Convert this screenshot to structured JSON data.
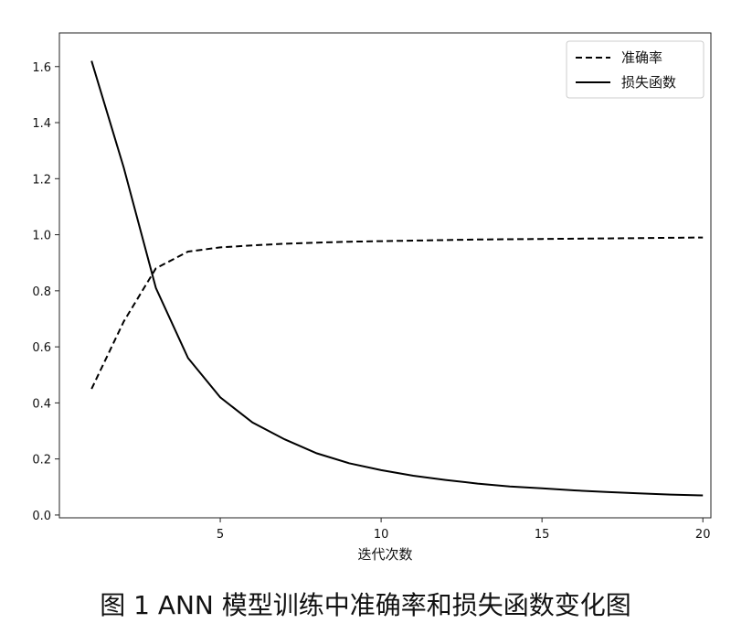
{
  "caption": "图 1 ANN 模型训练中准确率和损失函数变化图",
  "chart_data": {
    "type": "line",
    "title": "",
    "xlabel": "迭代次数",
    "ylabel": "",
    "xlim": [
      0.0,
      20.25
    ],
    "ylim": [
      -0.01,
      1.72
    ],
    "xticks": [
      5,
      10,
      15,
      20
    ],
    "yticks": [
      0.0,
      0.2,
      0.4,
      0.6,
      0.8,
      1.0,
      1.2,
      1.4,
      1.6
    ],
    "ytick_labels": [
      "0.0",
      "0.2",
      "0.4",
      "0.6",
      "0.8",
      "1.0",
      "1.2",
      "1.4",
      "1.6"
    ],
    "legend_position": "top-right",
    "grid": false,
    "series": [
      {
        "name": "准确率",
        "style": "dashed",
        "color": "#000000",
        "x": [
          1,
          2,
          3,
          4,
          5,
          6,
          7,
          8,
          9,
          10,
          11,
          12,
          13,
          14,
          15,
          16,
          17,
          18,
          19,
          20
        ],
        "y": [
          0.45,
          0.69,
          0.88,
          0.94,
          0.955,
          0.962,
          0.968,
          0.972,
          0.975,
          0.977,
          0.979,
          0.981,
          0.983,
          0.984,
          0.985,
          0.986,
          0.987,
          0.988,
          0.989,
          0.99
        ]
      },
      {
        "name": "损失函数",
        "style": "solid",
        "color": "#000000",
        "x": [
          1,
          2,
          3,
          4,
          5,
          6,
          7,
          8,
          9,
          10,
          11,
          12,
          13,
          14,
          15,
          16,
          17,
          18,
          19,
          20
        ],
        "y": [
          1.62,
          1.24,
          0.81,
          0.56,
          0.42,
          0.33,
          0.27,
          0.22,
          0.185,
          0.16,
          0.14,
          0.125,
          0.112,
          0.102,
          0.095,
          0.088,
          0.082,
          0.077,
          0.073,
          0.07
        ]
      }
    ]
  }
}
